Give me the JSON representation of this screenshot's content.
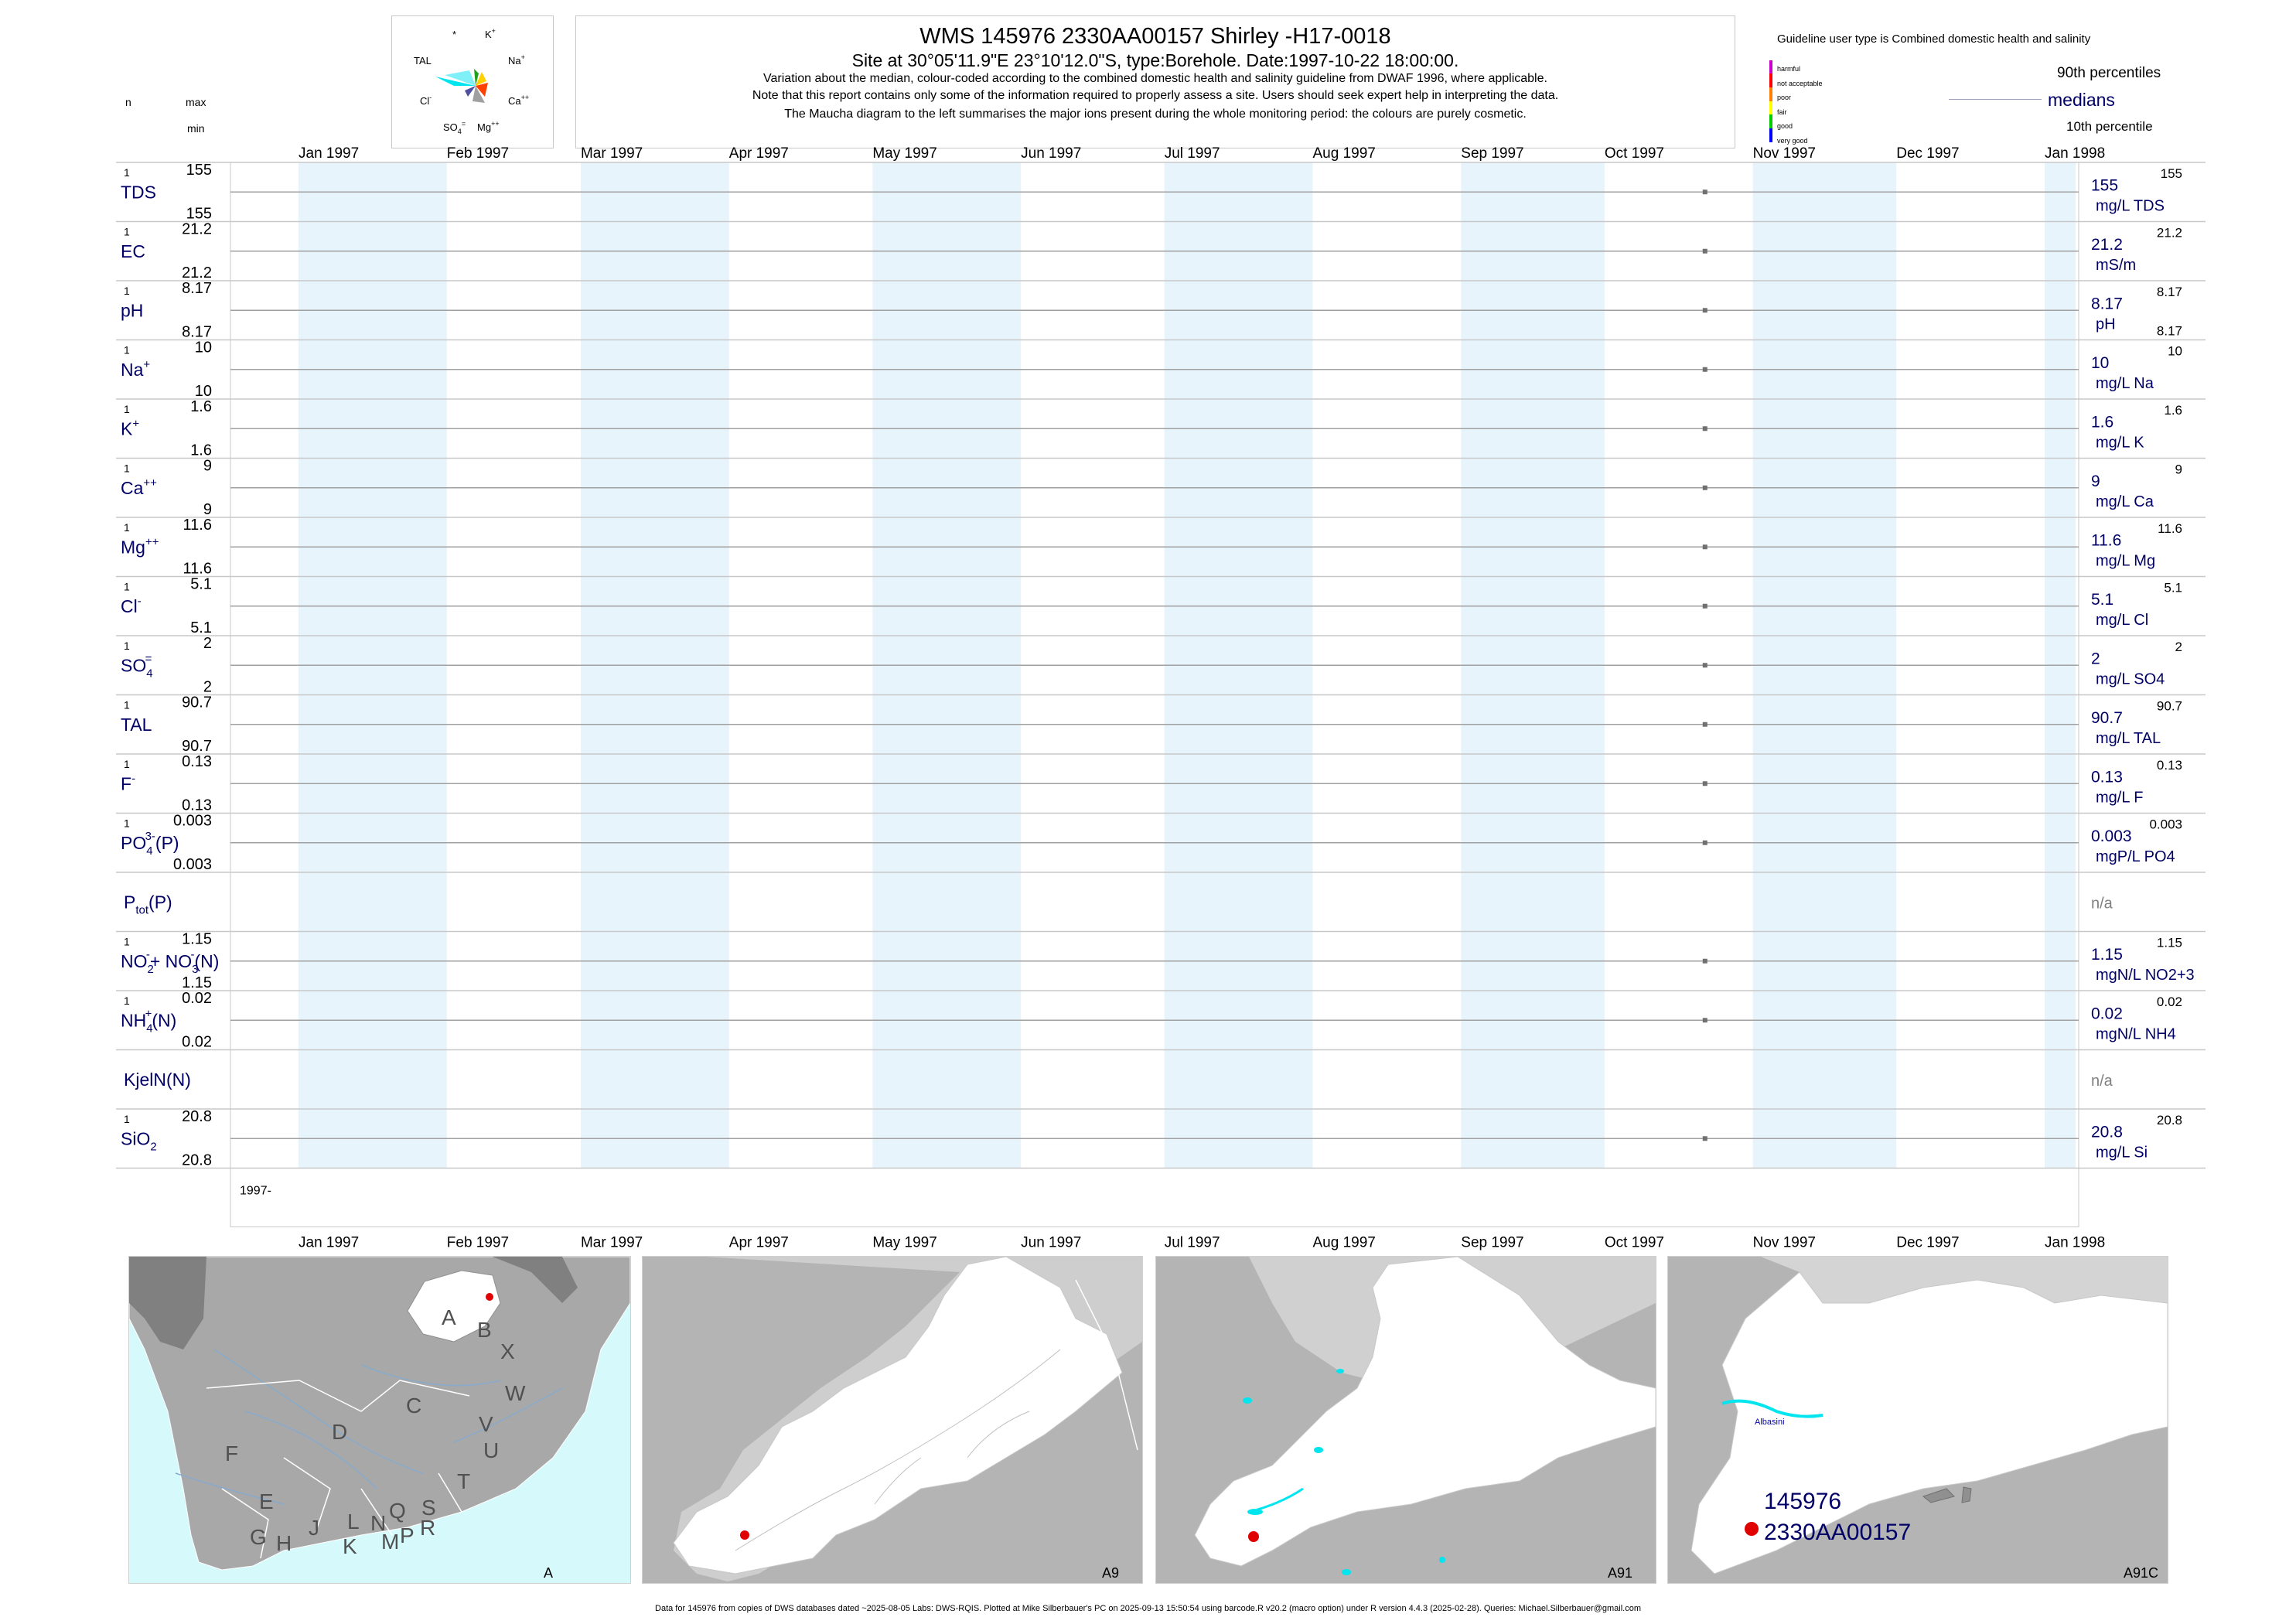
{
  "header": {
    "title": "WMS 145976 2330AA00157 Shirley -H17-0018",
    "subtitle": "Site at 30°05'11.9\"E 23°10'12.0\"S, type:Borehole. Date:1997-10-22 18:00:00.",
    "note1": "Variation about the median,  colour-coded according to the combined domestic health and salinity guideline from DWAF 1996, where applicable.",
    "note2": "Note that this report contains only some of the information required to properly assess a site. Users should seek expert help in interpreting the data.",
    "note3": "The Maucha diagram to the left summarises the major ions present during the whole monitoring period: the colours are purely cosmetic."
  },
  "left_legend": {
    "n": "n",
    "max": "max",
    "min": "min"
  },
  "maucha": {
    "labels": [
      "*",
      "K+",
      "TAL",
      "Na+",
      "Cl-",
      "Ca++",
      "SO4=",
      "Mg++"
    ]
  },
  "guideline": {
    "title": "Guideline user type is Combined domestic health and salinity",
    "classes": [
      "harmful",
      "not acceptable",
      "poor",
      "fair",
      "good",
      "very good"
    ],
    "class_colors": [
      "#cc00cc",
      "#ff0000",
      "#ff8000",
      "#ffff00",
      "#00cc00",
      "#0000ff"
    ],
    "p90": "90th percentiles",
    "medians": "medians",
    "p10": "10th percentile"
  },
  "axis": {
    "months": [
      "Jan 1997",
      "Feb 1997",
      "Mar 1997",
      "Apr 1997",
      "May 1997",
      "Jun 1997",
      "Jul 1997",
      "Aug 1997",
      "Sep 1997",
      "Oct 1997",
      "Nov 1997",
      "Dec 1997",
      "Jan 1998"
    ],
    "year_label": "1997-"
  },
  "chart_data": {
    "type": "scatter",
    "x_range": [
      "1997-01-01",
      "1998-01-01"
    ],
    "sample_date": "1997-10-22",
    "series": [
      {
        "name": "TDS",
        "sup": "",
        "sub": "",
        "n": "1",
        "max": "155",
        "min": "155",
        "median": "155",
        "p90": "155",
        "p10": "",
        "unit": "mg/L TDS",
        "value": 155
      },
      {
        "name": "EC",
        "sup": "",
        "sub": "",
        "n": "1",
        "max": "21.2",
        "min": "21.2",
        "median": "21.2",
        "p90": "21.2",
        "p10": "",
        "unit": "mS/m",
        "value": 21.2
      },
      {
        "name": "pH",
        "sup": "",
        "sub": "",
        "n": "1",
        "max": "8.17",
        "min": "8.17",
        "median": "8.17",
        "p90": "8.17",
        "p10": "8.17",
        "unit": "pH",
        "value": 8.17
      },
      {
        "name": "Na",
        "sup": "+",
        "sub": "",
        "n": "1",
        "max": "10",
        "min": "10",
        "median": "10",
        "p90": "10",
        "p10": "",
        "unit": "mg/L Na",
        "value": 10
      },
      {
        "name": "K",
        "sup": "+",
        "sub": "",
        "n": "1",
        "max": "1.6",
        "min": "1.6",
        "median": "1.6",
        "p90": "1.6",
        "p10": "",
        "unit": "mg/L K",
        "value": 1.6
      },
      {
        "name": "Ca",
        "sup": "++",
        "sub": "",
        "n": "1",
        "max": "9",
        "min": "9",
        "median": "9",
        "p90": "9",
        "p10": "",
        "unit": "mg/L Ca",
        "value": 9
      },
      {
        "name": "Mg",
        "sup": "++",
        "sub": "",
        "n": "1",
        "max": "11.6",
        "min": "11.6",
        "median": "11.6",
        "p90": "11.6",
        "p10": "",
        "unit": "mg/L Mg",
        "value": 11.6
      },
      {
        "name": "Cl",
        "sup": "-",
        "sub": "",
        "n": "1",
        "max": "5.1",
        "min": "5.1",
        "median": "5.1",
        "p90": "5.1",
        "p10": "",
        "unit": "mg/L Cl",
        "value": 5.1
      },
      {
        "name": "SO",
        "sup": "=",
        "sub": "4",
        "n": "1",
        "max": "2",
        "min": "2",
        "median": "2",
        "p90": "2",
        "p10": "",
        "unit": "mg/L SO4",
        "value": 2
      },
      {
        "name": "TAL",
        "sup": "",
        "sub": "",
        "n": "1",
        "max": "90.7",
        "min": "90.7",
        "median": "90.7",
        "p90": "90.7",
        "p10": "",
        "unit": "mg/L TAL",
        "value": 90.7
      },
      {
        "name": "F",
        "sup": "-",
        "sub": "",
        "n": "1",
        "max": "0.13",
        "min": "0.13",
        "median": "0.13",
        "p90": "0.13",
        "p10": "",
        "unit": "mg/L F",
        "value": 0.13
      },
      {
        "name": "PO",
        "sup": "3-",
        "sub": "4",
        "tail": "(P)",
        "n": "1",
        "max": "0.003",
        "min": "0.003",
        "median": "0.003",
        "p90": "0.003",
        "p10": "",
        "unit": "mgP/L PO4",
        "value": 0.003
      },
      {
        "name": "P",
        "sup": "",
        "sub": "tot",
        "tail": "(P)",
        "n": "",
        "max": "",
        "min": "",
        "median": "n/a",
        "p90": "",
        "p10": "",
        "unit": "",
        "value": null
      },
      {
        "name": "NO",
        "sup": "-",
        "sub": "2",
        "tail": "+ NO",
        "tailsup": "-",
        "tailsub": "3",
        "tail2": "(N)",
        "n": "1",
        "max": "1.15",
        "min": "1.15",
        "median": "1.15",
        "p90": "1.15",
        "p10": "",
        "unit": "mgN/L NO2+3",
        "value": 1.15
      },
      {
        "name": "NH",
        "sup": "+",
        "sub": "4",
        "tail": "(N)",
        "n": "1",
        "max": "0.02",
        "min": "0.02",
        "median": "0.02",
        "p90": "0.02",
        "p10": "",
        "unit": "mgN/L NH4",
        "value": 0.02
      },
      {
        "name": "KjelN(N)",
        "sup": "",
        "sub": "",
        "n": "",
        "max": "",
        "min": "",
        "median": "n/a",
        "p90": "",
        "p10": "",
        "unit": "",
        "value": null
      },
      {
        "name": "SiO",
        "sup": "",
        "sub": "2",
        "n": "1",
        "max": "20.8",
        "min": "20.8",
        "median": "20.8",
        "p90": "20.8",
        "p10": "",
        "unit": "mg/L Si",
        "value": 20.8
      }
    ]
  },
  "maps": {
    "map_a": {
      "label": "A",
      "regions": [
        "A",
        "B",
        "X",
        "W",
        "C",
        "D",
        "V",
        "U",
        "T",
        "F",
        "E",
        "G",
        "H",
        "J",
        "K",
        "L",
        "M",
        "N",
        "P",
        "Q",
        "R",
        "S"
      ]
    },
    "map_a9": {
      "label": "A9"
    },
    "map_a91": {
      "label": "A91"
    },
    "map_a91c": {
      "label": "A91C",
      "dam_name": "Albasini",
      "site_id": "145976",
      "site_code": "2330AA00157"
    }
  },
  "footer": "Data for 145976 from copies of DWS databases dated ~2025-08-05 Labs: DWS-RQIS. Plotted at Mike Silberbauer's PC on 2025-09-13 15:50:54 using barcode.R v20.2 (macro option) under R version 4.4.3 (2025-02-28). Queries: Michael.Silberbauer@gmail.com",
  "colors": {
    "navy": "#000066",
    "band": "#e8f4fc",
    "site_dot": "#e00000",
    "water": "#00e5ee"
  }
}
